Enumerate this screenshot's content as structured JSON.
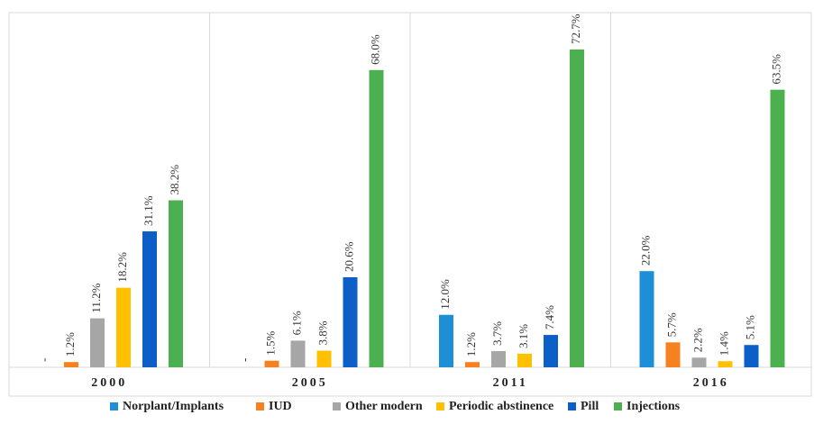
{
  "chart_data": {
    "type": "bar",
    "categories": [
      "2000",
      "2005",
      "2011",
      "2016"
    ],
    "series": [
      {
        "name": "Norplant/Implants",
        "color": "#1e8fd6",
        "values": [
          null,
          null,
          12.0,
          22.0
        ],
        "value_labels": [
          "-",
          "-",
          "12.0%",
          "22.0%"
        ]
      },
      {
        "name": "IUD",
        "color": "#f5821f",
        "values": [
          1.2,
          1.5,
          1.2,
          5.7
        ],
        "value_labels": [
          "1.2%",
          "1.5%",
          "1.2%",
          "5.7%"
        ]
      },
      {
        "name": "Other modern",
        "color": "#a6a6a6",
        "values": [
          11.2,
          6.1,
          3.7,
          2.2
        ],
        "value_labels": [
          "11.2%",
          "6.1%",
          "3.7%",
          "2.2%"
        ]
      },
      {
        "name": "Periodic abstinence",
        "color": "#ffc000",
        "values": [
          18.2,
          3.8,
          3.1,
          1.4
        ],
        "value_labels": [
          "18.2%",
          "3.8%",
          "3.1%",
          "1.4%"
        ]
      },
      {
        "name": "Pill",
        "color": "#0b5fc6",
        "values": [
          31.1,
          20.6,
          7.4,
          5.1
        ],
        "value_labels": [
          "31.1%",
          "20.6%",
          "7.4%",
          "5.1%"
        ]
      },
      {
        "name": "Injections",
        "color": "#4caf50",
        "values": [
          38.2,
          68.0,
          72.7,
          63.5
        ],
        "value_labels": [
          "38.2%",
          "68.0%",
          "72.7%",
          "63.5%"
        ]
      }
    ]
  }
}
